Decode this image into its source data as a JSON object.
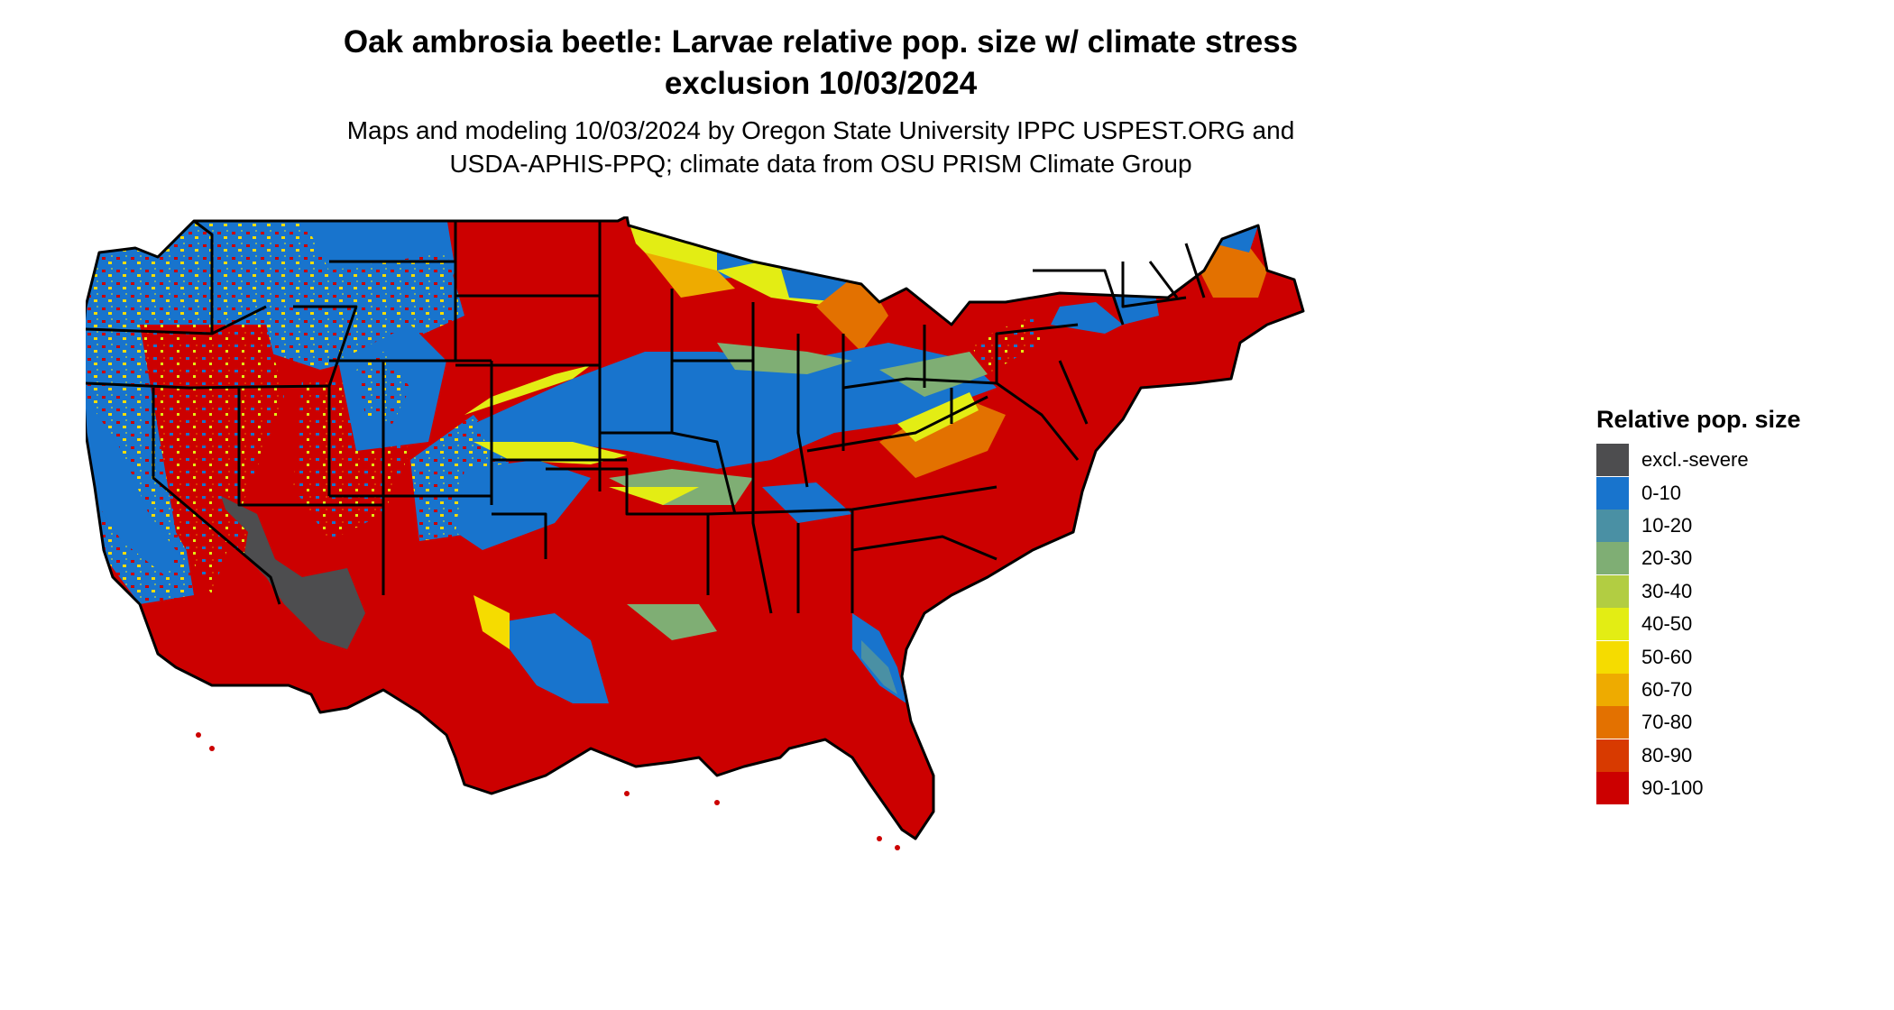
{
  "title": {
    "line1": "Oak ambrosia beetle: Larvae relative pop. size w/ climate stress",
    "line2": "exclusion 10/03/2024"
  },
  "subtitle": {
    "line1": "Maps and modeling 10/03/2024 by Oregon State University IPPC USPEST.ORG and",
    "line2": "USDA-APHIS-PPQ; climate data from OSU PRISM Climate Group"
  },
  "legend": {
    "title": "Relative pop. size",
    "items": [
      {
        "label": "excl.-severe",
        "color": "#4d4d4f"
      },
      {
        "label": "0-10",
        "color": "#1874cd"
      },
      {
        "label": "10-20",
        "color": "#4a90a4"
      },
      {
        "label": "20-30",
        "color": "#7fae74"
      },
      {
        "label": "30-40",
        "color": "#b2cd42"
      },
      {
        "label": "40-50",
        "color": "#e3ed14"
      },
      {
        "label": "50-60",
        "color": "#f5dc00"
      },
      {
        "label": "60-70",
        "color": "#eeab00"
      },
      {
        "label": "70-80",
        "color": "#e37100"
      },
      {
        "label": "80-90",
        "color": "#d83a00"
      },
      {
        "label": "90-100",
        "color": "#cc0000"
      }
    ]
  }
}
